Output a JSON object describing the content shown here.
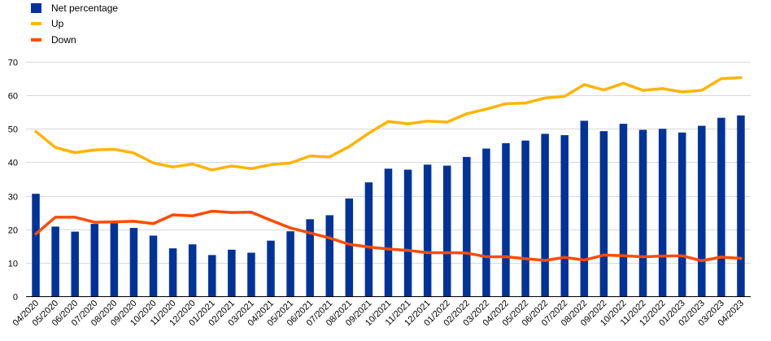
{
  "chart_data": {
    "type": "bar+line",
    "title": "",
    "xlabel": "",
    "ylabel": "",
    "ylim": [
      0,
      70
    ],
    "yticks": [
      0,
      10,
      20,
      30,
      40,
      50,
      60,
      70
    ],
    "grid": true,
    "legend_position": "top-left",
    "categories": [
      "04/2020",
      "05/2020",
      "06/2020",
      "07/2020",
      "08/2020",
      "09/2020",
      "10/2020",
      "11/2020",
      "12/2020",
      "01/2021",
      "02/2021",
      "03/2021",
      "04/2021",
      "05/2021",
      "06/2021",
      "07/2021",
      "08/2021",
      "09/2021",
      "10/2021",
      "11/2021",
      "12/2021",
      "01/2022",
      "02/2022",
      "03/2022",
      "04/2022",
      "05/2022",
      "06/2022",
      "07/2022",
      "08/2022",
      "09/2022",
      "10/2022",
      "11/2022",
      "12/2022",
      "01/2023",
      "02/2023",
      "03/2023",
      "04/2023"
    ],
    "series": [
      {
        "name": "Net percentage",
        "kind": "bar",
        "color": "#003399",
        "values": [
          30.6,
          20.8,
          19.3,
          21.6,
          21.8,
          20.4,
          18.1,
          14.3,
          15.5,
          12.3,
          13.9,
          13.0,
          16.6,
          19.4,
          23.0,
          24.2,
          29.2,
          34.0,
          38.1,
          37.8,
          39.3,
          39.0,
          41.6,
          44.1,
          45.7,
          46.5,
          48.5,
          48.1,
          52.4,
          49.3,
          51.5,
          49.7,
          50.0,
          48.9,
          50.9,
          53.3,
          54.0
        ]
      },
      {
        "name": "Up",
        "kind": "line",
        "color": "#FFB400",
        "values": [
          49.2,
          44.4,
          42.9,
          43.7,
          43.9,
          42.8,
          39.8,
          38.6,
          39.5,
          37.7,
          38.9,
          38.1,
          39.3,
          39.8,
          41.9,
          41.6,
          44.7,
          48.7,
          52.2,
          51.5,
          52.3,
          52.0,
          54.5,
          55.9,
          57.5,
          57.7,
          59.2,
          59.7,
          63.2,
          61.6,
          63.6,
          61.5,
          62.0,
          61.0,
          61.5,
          65.0,
          65.3
        ]
      },
      {
        "name": "Down",
        "kind": "line",
        "color": "#FF4B00",
        "values": [
          18.6,
          23.6,
          23.6,
          22.1,
          22.2,
          22.4,
          21.7,
          24.3,
          24.0,
          25.4,
          25.0,
          25.1,
          22.7,
          20.4,
          18.9,
          17.4,
          15.5,
          14.7,
          14.1,
          13.7,
          13.0,
          13.0,
          12.9,
          11.8,
          11.8,
          11.2,
          10.7,
          11.6,
          10.8,
          12.3,
          12.1,
          11.8,
          12.0,
          12.1,
          10.6,
          11.7,
          11.3
        ]
      }
    ]
  }
}
